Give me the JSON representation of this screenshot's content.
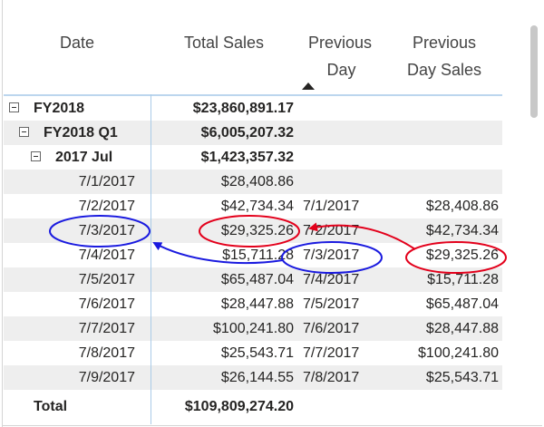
{
  "headers": {
    "date": "Date",
    "total_sales": "Total Sales",
    "previous_day": [
      "Previous",
      "Day"
    ],
    "previous_day_sales": [
      "Previous",
      "Day Sales"
    ]
  },
  "sort": {
    "column": "Previous Day",
    "direction": "ascending"
  },
  "groups": {
    "fy": {
      "label": "FY2018",
      "total_sales": "$23,860,891.17"
    },
    "quarter": {
      "label": "FY2018 Q1",
      "total_sales": "$6,005,207.32"
    },
    "month": {
      "label": "2017 Jul",
      "total_sales": "$1,423,357.32"
    }
  },
  "rows": [
    {
      "date": "7/1/2017",
      "total_sales": "$28,408.86",
      "previous_day": "",
      "previous_day_sales": ""
    },
    {
      "date": "7/2/2017",
      "total_sales": "$42,734.34",
      "previous_day": "7/1/2017",
      "previous_day_sales": "$28,408.86"
    },
    {
      "date": "7/3/2017",
      "total_sales": "$29,325.26",
      "previous_day": "7/2/2017",
      "previous_day_sales": "$42,734.34"
    },
    {
      "date": "7/4/2017",
      "total_sales": "$15,711.28",
      "previous_day": "7/3/2017",
      "previous_day_sales": "$29,325.26"
    },
    {
      "date": "7/5/2017",
      "total_sales": "$65,487.04",
      "previous_day": "7/4/2017",
      "previous_day_sales": "$15,711.28"
    },
    {
      "date": "7/6/2017",
      "total_sales": "$28,447.88",
      "previous_day": "7/5/2017",
      "previous_day_sales": "$65,487.04"
    },
    {
      "date": "7/7/2017",
      "total_sales": "$100,241.80",
      "previous_day": "7/6/2017",
      "previous_day_sales": "$28,447.88"
    },
    {
      "date": "7/8/2017",
      "total_sales": "$25,543.71",
      "previous_day": "7/7/2017",
      "previous_day_sales": "$100,241.80"
    },
    {
      "date": "7/9/2017",
      "total_sales": "$26,144.55",
      "previous_day": "7/8/2017",
      "previous_day_sales": "$25,543.71"
    }
  ],
  "total": {
    "label": "Total",
    "total_sales": "$109,809,274.20"
  },
  "annotation_colors": {
    "red": "#e3001b",
    "blue": "#1a1adf"
  }
}
